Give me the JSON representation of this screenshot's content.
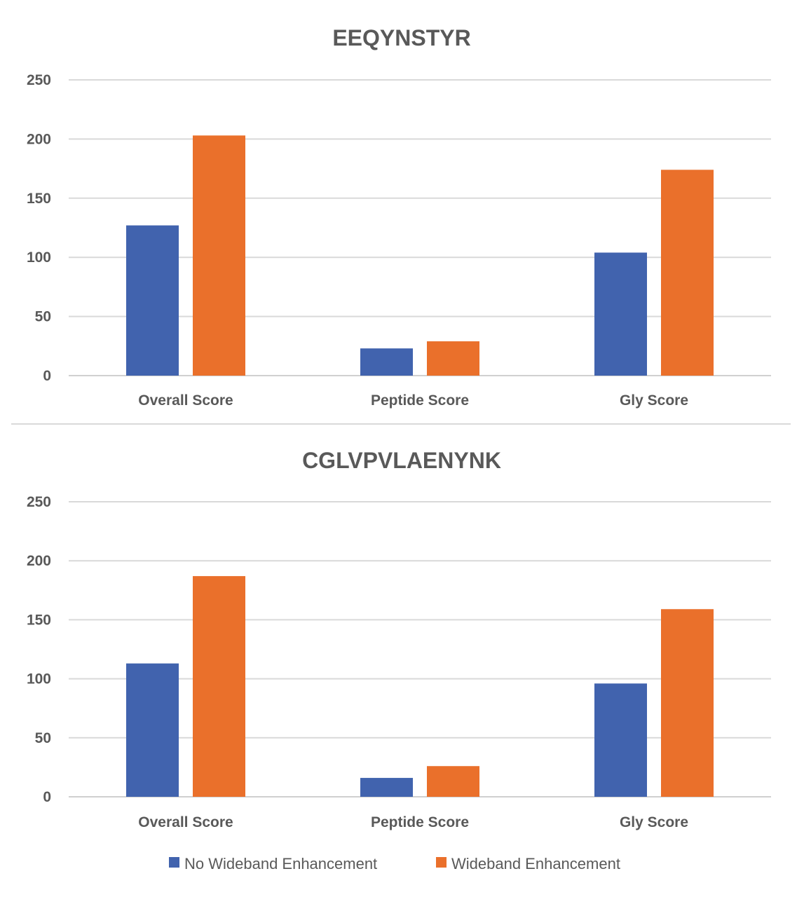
{
  "chart_data": [
    {
      "type": "bar",
      "title": "EEQYNSTYR",
      "categories": [
        "Overall Score",
        "Peptide Score",
        "Gly Score"
      ],
      "series": [
        {
          "name": "No Wideband Enhancement",
          "color": "#4163AE",
          "values": [
            127,
            23,
            104
          ]
        },
        {
          "name": "Wideband Enhancement",
          "color": "#EA702B",
          "values": [
            203,
            29,
            174
          ]
        }
      ],
      "ylim": [
        0,
        250
      ],
      "yticks": [
        0,
        50,
        100,
        150,
        200,
        250
      ],
      "xlabel": "",
      "ylabel": "",
      "grid": true
    },
    {
      "type": "bar",
      "title": "CGLVPVLAENYNK",
      "categories": [
        "Overall Score",
        "Peptide Score",
        "Gly Score"
      ],
      "series": [
        {
          "name": "No Wideband Enhancement",
          "color": "#4163AE",
          "values": [
            113,
            16,
            96
          ]
        },
        {
          "name": "Wideband Enhancement",
          "color": "#EA702B",
          "values": [
            187,
            26,
            159
          ]
        }
      ],
      "ylim": [
        0,
        250
      ],
      "yticks": [
        0,
        50,
        100,
        150,
        200,
        250
      ],
      "xlabel": "",
      "ylabel": "",
      "grid": true
    }
  ],
  "legend": {
    "placement": "bottom",
    "items": [
      {
        "label": "No Wideband Enhancement",
        "color": "#4163AE"
      },
      {
        "label": "Wideband Enhancement",
        "color": "#EA702B"
      }
    ]
  }
}
